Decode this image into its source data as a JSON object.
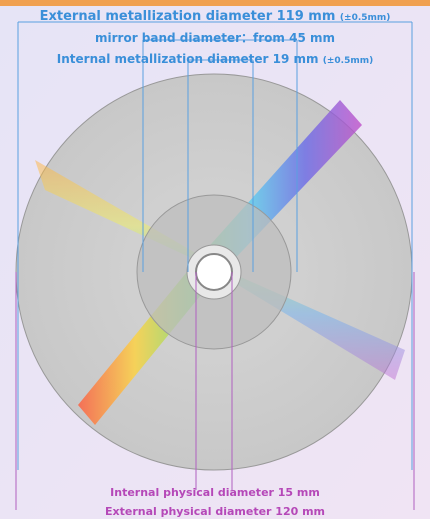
{
  "labels": {
    "external_metallization": {
      "text": "External metallization diameter 119 mm",
      "tolerance": "(±0.5mm)"
    },
    "mirror_band": "mirror band diameter：from 45 mm",
    "internal_metallization": {
      "text": "Internal metallization diameter 19 mm",
      "tolerance": "(±0.5mm)"
    },
    "internal_physical": "Internal physical diameter 15 mm",
    "external_physical": "External physical diameter 120 mm"
  }
}
